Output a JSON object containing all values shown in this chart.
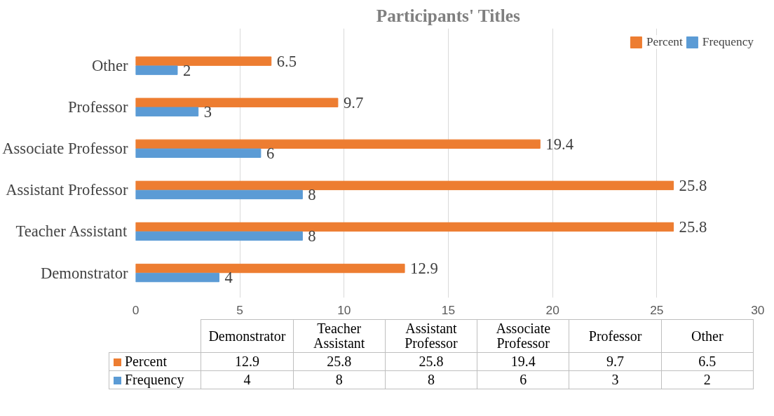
{
  "chart_data": [
    {
      "type": "bar",
      "orientation": "horizontal",
      "title": "Participants' Titles",
      "categories": [
        "Other",
        "Professor",
        "Associate Professor",
        "Assistant Professor",
        "Teacher Assistant",
        "Demonstrator"
      ],
      "series": [
        {
          "name": "Percent",
          "color": "#ed7d31",
          "values": [
            6.5,
            9.7,
            19.4,
            25.8,
            25.8,
            12.9
          ]
        },
        {
          "name": "Frequency",
          "color": "#5b9bd5",
          "values": [
            2,
            3,
            6,
            8,
            8,
            4
          ]
        }
      ],
      "xlim": [
        0,
        30
      ],
      "xticks": [
        0,
        5,
        10,
        15,
        20,
        25,
        30
      ],
      "grid": "x",
      "legend": "top right",
      "data_labels": true
    },
    {
      "type": "other",
      "categories": [
        "Demonstrator",
        "Teacher Assistant",
        "Assistant Professor",
        "Associate Professor",
        "Professor",
        "Other"
      ],
      "series": [
        {
          "name": "Percent",
          "color": "#ed7d31",
          "values": [
            12.9,
            25.8,
            25.8,
            19.4,
            9.7,
            6.5
          ]
        },
        {
          "name": "Frequency",
          "color": "#5b9bd5",
          "values": [
            4,
            8,
            8,
            6,
            3,
            2
          ]
        }
      ],
      "legend": "left",
      "data_labels": true
    }
  ]
}
